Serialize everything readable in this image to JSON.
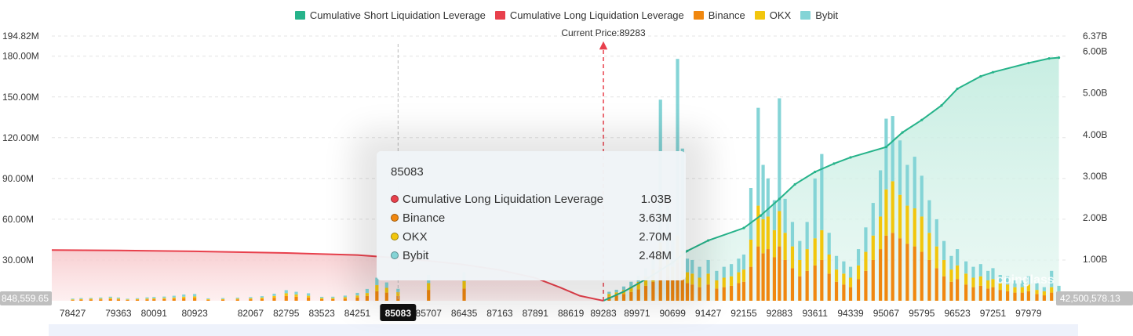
{
  "legend": {
    "items": [
      {
        "label": "Cumulative Short Liquidation Leverage",
        "color": "#26b38a"
      },
      {
        "label": "Cumulative Long Liquidation Leverage",
        "color": "#e8404c"
      },
      {
        "label": "Binance",
        "color": "#f0870f"
      },
      {
        "label": "OKX",
        "color": "#f2c60d"
      },
      {
        "label": "Bybit",
        "color": "#84d4d6"
      }
    ]
  },
  "current_price_label": "Current Price:89283",
  "axis_labels": {
    "left_min_marker": "848,559.65",
    "right_min_marker": "42,500,578.13",
    "left_max_tick": "194.82M",
    "right_max_tick": "6.37B"
  },
  "watermark": "coinglass",
  "tooltip": {
    "title": "85083",
    "rows": [
      {
        "label": "Cumulative Long Liquidation Leverage",
        "value": "1.03B",
        "color": "#e8404c"
      },
      {
        "label": "Binance",
        "value": "3.63M",
        "color": "#f0870f"
      },
      {
        "label": "OKX",
        "value": "2.70M",
        "color": "#f2c60d"
      },
      {
        "label": "Bybit",
        "value": "2.48M",
        "color": "#84d4d6"
      }
    ]
  },
  "chart_data": {
    "type": "bar",
    "stacked": true,
    "x_tick_labels": [
      "78427",
      "79363",
      "80091",
      "80923",
      "82067",
      "82795",
      "83523",
      "84251",
      "85083",
      "85707",
      "86435",
      "87163",
      "87891",
      "88619",
      "89283",
      "89971",
      "90699",
      "91427",
      "92155",
      "92883",
      "93611",
      "94339",
      "95067",
      "95795",
      "96523",
      "97251",
      "97979"
    ],
    "x_range": [
      78000,
      98800
    ],
    "highlighted_x": "85083",
    "current_price": 89283,
    "y_left": {
      "range": [
        0,
        194820000
      ],
      "ticks": [
        "30.00M",
        "60.00M",
        "90.00M",
        "120.00M",
        "150.00M",
        "180.00M"
      ],
      "tick_values": [
        30000000,
        60000000,
        90000000,
        120000000,
        150000000,
        180000000
      ]
    },
    "y_right": {
      "range": [
        0,
        6370000000
      ],
      "ticks": [
        "1.00B",
        "2.00B",
        "3.00B",
        "4.00B",
        "5.00B",
        "6.00B"
      ],
      "tick_values": [
        1000000000,
        2000000000,
        3000000000,
        4000000000,
        5000000000,
        6000000000
      ]
    },
    "grid": true,
    "legend_position": "top-center",
    "stack_series": [
      {
        "name": "Binance",
        "color": "#f0870f"
      },
      {
        "name": "OKX",
        "color": "#f2c60d"
      },
      {
        "name": "Bybit",
        "color": "#84d4d6"
      }
    ],
    "bars": [
      {
        "x": 78427,
        "binance": 0.5,
        "okx": 0.5,
        "bybit": 0.6
      },
      {
        "x": 78600,
        "binance": 0.8,
        "okx": 0.5,
        "bybit": 0.7
      },
      {
        "x": 78800,
        "binance": 0.9,
        "okx": 0.6,
        "bybit": 0.6
      },
      {
        "x": 79000,
        "binance": 1.0,
        "okx": 0.6,
        "bybit": 0.8
      },
      {
        "x": 79200,
        "binance": 1.2,
        "okx": 0.8,
        "bybit": 1.0
      },
      {
        "x": 79363,
        "binance": 1.0,
        "okx": 0.6,
        "bybit": 0.8
      },
      {
        "x": 79550,
        "binance": 0.6,
        "okx": 0.4,
        "bybit": 0.5
      },
      {
        "x": 79750,
        "binance": 0.8,
        "okx": 0.5,
        "bybit": 0.6
      },
      {
        "x": 79950,
        "binance": 1.0,
        "okx": 0.6,
        "bybit": 0.9
      },
      {
        "x": 80091,
        "binance": 1.1,
        "okx": 0.7,
        "bybit": 1.0
      },
      {
        "x": 80300,
        "binance": 1.3,
        "okx": 0.8,
        "bybit": 1.0
      },
      {
        "x": 80500,
        "binance": 1.5,
        "okx": 0.9,
        "bybit": 1.3
      },
      {
        "x": 80700,
        "binance": 1.8,
        "okx": 1.2,
        "bybit": 1.6
      },
      {
        "x": 80923,
        "binance": 2.0,
        "okx": 1.2,
        "bybit": 1.8
      },
      {
        "x": 81200,
        "binance": 0.7,
        "okx": 0.5,
        "bybit": 0.6
      },
      {
        "x": 81500,
        "binance": 0.8,
        "okx": 0.5,
        "bybit": 0.7
      },
      {
        "x": 81800,
        "binance": 1.0,
        "okx": 0.6,
        "bybit": 0.7
      },
      {
        "x": 82067,
        "binance": 1.1,
        "okx": 0.7,
        "bybit": 0.9
      },
      {
        "x": 82300,
        "binance": 1.4,
        "okx": 0.9,
        "bybit": 1.1
      },
      {
        "x": 82550,
        "binance": 2.2,
        "okx": 1.4,
        "bybit": 1.6
      },
      {
        "x": 82795,
        "binance": 3.5,
        "okx": 2.0,
        "bybit": 2.3
      },
      {
        "x": 83000,
        "binance": 3.0,
        "okx": 1.6,
        "bybit": 2.0
      },
      {
        "x": 83250,
        "binance": 2.4,
        "okx": 1.3,
        "bybit": 1.8
      },
      {
        "x": 83523,
        "binance": 1.2,
        "okx": 0.8,
        "bybit": 0.9
      },
      {
        "x": 83750,
        "binance": 1.2,
        "okx": 0.8,
        "bybit": 1.0
      },
      {
        "x": 84000,
        "binance": 1.6,
        "okx": 1.0,
        "bybit": 1.2
      },
      {
        "x": 84251,
        "binance": 2.4,
        "okx": 1.5,
        "bybit": 1.9
      },
      {
        "x": 84450,
        "binance": 3.5,
        "okx": 2.2,
        "bybit": 3.0
      },
      {
        "x": 84650,
        "binance": 7.0,
        "okx": 4.5,
        "bybit": 5.5
      },
      {
        "x": 84850,
        "binance": 6.0,
        "okx": 3.5,
        "bybit": 4.0
      },
      {
        "x": 85083,
        "binance": 3.63,
        "okx": 2.7,
        "bybit": 2.48
      },
      {
        "x": 85707,
        "binance": 8.0,
        "okx": 5.0,
        "bybit": 6.0
      },
      {
        "x": 86435,
        "binance": 9.0,
        "okx": 5.5,
        "bybit": 6.5
      },
      {
        "x": 89400,
        "binance": 3.0,
        "okx": 2.0,
        "bybit": 1.6
      },
      {
        "x": 89550,
        "binance": 3.8,
        "okx": 2.4,
        "bybit": 1.9
      },
      {
        "x": 89700,
        "binance": 5.0,
        "okx": 3.0,
        "bybit": 2.5
      },
      {
        "x": 89850,
        "binance": 6.5,
        "okx": 4.0,
        "bybit": 3.5
      },
      {
        "x": 90000,
        "binance": 8.5,
        "okx": 5.5,
        "bybit": 4.5
      },
      {
        "x": 90150,
        "binance": 11.0,
        "okx": 7.0,
        "bybit": 6.0
      },
      {
        "x": 90300,
        "binance": 14.0,
        "okx": 9.0,
        "bybit": 8.0
      },
      {
        "x": 90450,
        "binance": 25.0,
        "okx": 18.0,
        "bybit": 105.0
      },
      {
        "x": 90600,
        "binance": 18.0,
        "okx": 12.0,
        "bybit": 40.0
      },
      {
        "x": 90699,
        "binance": 15.0,
        "okx": 10.0,
        "bybit": 20.0
      },
      {
        "x": 90800,
        "binance": 28.0,
        "okx": 20.0,
        "bybit": 130.0
      },
      {
        "x": 90900,
        "binance": 22.0,
        "okx": 15.0,
        "bybit": 75.0
      },
      {
        "x": 91000,
        "binance": 13.0,
        "okx": 8.0,
        "bybit": 10.0
      },
      {
        "x": 91100,
        "binance": 12.0,
        "okx": 8.0,
        "bybit": 10.0
      },
      {
        "x": 91250,
        "binance": 10.0,
        "okx": 7.0,
        "bybit": 8.0
      },
      {
        "x": 91427,
        "binance": 12.0,
        "okx": 8.0,
        "bybit": 10.0
      },
      {
        "x": 91600,
        "binance": 9.0,
        "okx": 6.0,
        "bybit": 7.0
      },
      {
        "x": 91750,
        "binance": 10.0,
        "okx": 7.0,
        "bybit": 8.0
      },
      {
        "x": 91900,
        "binance": 11.0,
        "okx": 7.0,
        "bybit": 9.0
      },
      {
        "x": 92050,
        "binance": 13.0,
        "okx": 8.0,
        "bybit": 10.0
      },
      {
        "x": 92155,
        "binance": 14.0,
        "okx": 9.0,
        "bybit": 11.0
      },
      {
        "x": 92300,
        "binance": 25.0,
        "okx": 20.0,
        "bybit": 38.0
      },
      {
        "x": 92450,
        "binance": 40.0,
        "okx": 30.0,
        "bybit": 72.0
      },
      {
        "x": 92550,
        "binance": 35.0,
        "okx": 25.0,
        "bybit": 40.0
      },
      {
        "x": 92650,
        "binance": 38.0,
        "okx": 24.0,
        "bybit": 28.0
      },
      {
        "x": 92780,
        "binance": 32.0,
        "okx": 20.0,
        "bybit": 22.0
      },
      {
        "x": 92883,
        "binance": 40.0,
        "okx": 26.0,
        "bybit": 83.0
      },
      {
        "x": 93000,
        "binance": 30.0,
        "okx": 20.0,
        "bybit": 25.0
      },
      {
        "x": 93150,
        "binance": 24.0,
        "okx": 16.0,
        "bybit": 18.0
      },
      {
        "x": 93300,
        "binance": 18.0,
        "okx": 12.0,
        "bybit": 14.0
      },
      {
        "x": 93450,
        "binance": 22.0,
        "okx": 16.0,
        "bybit": 20.0
      },
      {
        "x": 93611,
        "binance": 26.0,
        "okx": 20.0,
        "bybit": 44.0
      },
      {
        "x": 93750,
        "binance": 30.0,
        "okx": 22.0,
        "bybit": 56.0
      },
      {
        "x": 93900,
        "binance": 20.0,
        "okx": 14.0,
        "bybit": 16.0
      },
      {
        "x": 94050,
        "binance": 14.0,
        "okx": 9.0,
        "bybit": 10.0
      },
      {
        "x": 94200,
        "binance": 12.0,
        "okx": 8.0,
        "bybit": 9.0
      },
      {
        "x": 94339,
        "binance": 10.0,
        "okx": 7.0,
        "bybit": 8.0
      },
      {
        "x": 94500,
        "binance": 16.0,
        "okx": 10.0,
        "bybit": 12.0
      },
      {
        "x": 94650,
        "binance": 22.0,
        "okx": 14.0,
        "bybit": 18.0
      },
      {
        "x": 94800,
        "binance": 30.0,
        "okx": 18.0,
        "bybit": 24.0
      },
      {
        "x": 94950,
        "binance": 38.0,
        "okx": 24.0,
        "bybit": 34.0
      },
      {
        "x": 95067,
        "binance": 48.0,
        "okx": 34.0,
        "bybit": 52.0
      },
      {
        "x": 95200,
        "binance": 50.0,
        "okx": 38.0,
        "bybit": 48.0
      },
      {
        "x": 95350,
        "binance": 46.0,
        "okx": 32.0,
        "bybit": 40.0
      },
      {
        "x": 95500,
        "binance": 42.0,
        "okx": 28.0,
        "bybit": 30.0
      },
      {
        "x": 95650,
        "binance": 40.0,
        "okx": 28.0,
        "bybit": 38.0
      },
      {
        "x": 95795,
        "binance": 36.0,
        "okx": 26.0,
        "bybit": 30.0
      },
      {
        "x": 95950,
        "binance": 30.0,
        "okx": 20.0,
        "bybit": 24.0
      },
      {
        "x": 96100,
        "binance": 24.0,
        "okx": 16.0,
        "bybit": 20.0
      },
      {
        "x": 96250,
        "binance": 18.0,
        "okx": 12.0,
        "bybit": 14.0
      },
      {
        "x": 96400,
        "binance": 14.0,
        "okx": 9.0,
        "bybit": 10.0
      },
      {
        "x": 96523,
        "binance": 16.0,
        "okx": 10.0,
        "bybit": 12.0
      },
      {
        "x": 96700,
        "binance": 12.0,
        "okx": 8.0,
        "bybit": 9.0
      },
      {
        "x": 96850,
        "binance": 10.0,
        "okx": 7.0,
        "bybit": 8.0
      },
      {
        "x": 97000,
        "binance": 11.0,
        "okx": 7.0,
        "bybit": 9.0
      },
      {
        "x": 97150,
        "binance": 9.0,
        "okx": 6.0,
        "bybit": 7.0
      },
      {
        "x": 97251,
        "binance": 10.0,
        "okx": 6.0,
        "bybit": 8.0
      },
      {
        "x": 97400,
        "binance": 8.0,
        "okx": 5.0,
        "bybit": 6.0
      },
      {
        "x": 97550,
        "binance": 7.0,
        "okx": 5.0,
        "bybit": 6.0
      },
      {
        "x": 97700,
        "binance": 6.0,
        "okx": 4.0,
        "bybit": 5.0
      },
      {
        "x": 97850,
        "binance": 6.0,
        "okx": 4.0,
        "bybit": 5.0
      },
      {
        "x": 97979,
        "binance": 7.0,
        "okx": 5.0,
        "bybit": 6.0
      },
      {
        "x": 98150,
        "binance": 5.0,
        "okx": 3.0,
        "bybit": 5.0
      },
      {
        "x": 98300,
        "binance": 4.0,
        "okx": 3.0,
        "bybit": 3.0
      },
      {
        "x": 98450,
        "binance": 6.0,
        "okx": 4.0,
        "bybit": 12.0
      },
      {
        "x": 98600,
        "binance": 4.0,
        "okx": 3.0,
        "bybit": 4.0
      }
    ],
    "bar_units": "millions",
    "line_series": [
      {
        "name": "Cumulative Long Liquidation Leverage",
        "color": "#e8404c",
        "axis": "right",
        "points": [
          [
            78000,
            1.22
          ],
          [
            79363,
            1.21
          ],
          [
            80923,
            1.19
          ],
          [
            82795,
            1.15
          ],
          [
            84251,
            1.1
          ],
          [
            85083,
            1.03
          ],
          [
            85707,
            0.96
          ],
          [
            86435,
            0.87
          ],
          [
            87163,
            0.74
          ],
          [
            87891,
            0.55
          ],
          [
            88400,
            0.32
          ],
          [
            88800,
            0.12
          ],
          [
            89283,
            0.0
          ]
        ]
      },
      {
        "name": "Cumulative Short Liquidation Leverage",
        "color": "#26b38a",
        "axis": "right",
        "points": [
          [
            89283,
            0.0
          ],
          [
            89700,
            0.22
          ],
          [
            90200,
            0.55
          ],
          [
            90699,
            0.92
          ],
          [
            91000,
            1.2
          ],
          [
            91427,
            1.45
          ],
          [
            92155,
            1.75
          ],
          [
            92500,
            2.05
          ],
          [
            92883,
            2.45
          ],
          [
            93200,
            2.8
          ],
          [
            93611,
            3.1
          ],
          [
            94000,
            3.3
          ],
          [
            94339,
            3.45
          ],
          [
            95067,
            3.7
          ],
          [
            95400,
            4.05
          ],
          [
            95795,
            4.35
          ],
          [
            96200,
            4.7
          ],
          [
            96523,
            5.1
          ],
          [
            97000,
            5.4
          ],
          [
            97251,
            5.5
          ],
          [
            97979,
            5.72
          ],
          [
            98400,
            5.83
          ],
          [
            98600,
            5.85
          ]
        ]
      }
    ]
  }
}
